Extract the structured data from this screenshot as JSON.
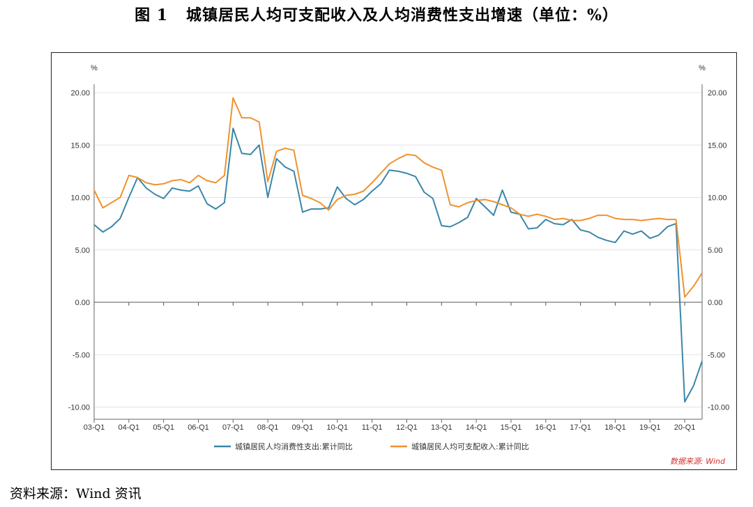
{
  "figure": {
    "number": "图 1",
    "title": "城镇居民人均可支配收入及人均消费性支出增速（单位：%）",
    "source_note": "资料来源：Wind 资讯",
    "watermark": "数据来源: Wind"
  },
  "chart_data": {
    "type": "line",
    "title": "城镇居民人均可支配收入及人均消费性支出增速（单位：%）",
    "ylabel_left": "%",
    "ylabel_right": "%",
    "ylim": [
      -11,
      21
    ],
    "yticks": [
      "20.00",
      "15.00",
      "10.00",
      "5.00",
      "0.00",
      "-5.00",
      "-10.00"
    ],
    "ytick_values": [
      20,
      15,
      10,
      5,
      0,
      -5,
      -10
    ],
    "right_yticks": [
      "20.00",
      "15.00",
      "10.00",
      "5.00",
      "0.00",
      "-5.00",
      "-10.00"
    ],
    "xticks": [
      "03-Q1",
      "04-Q1",
      "05-Q1",
      "06-Q1",
      "07-Q1",
      "08-Q1",
      "09-Q1",
      "10-Q1",
      "11-Q1",
      "12-Q1",
      "13-Q1",
      "14-Q1",
      "15-Q1",
      "16-Q1",
      "17-Q1",
      "18-Q1",
      "19-Q1",
      "20-Q1"
    ],
    "grid": true,
    "legend_position": "bottom",
    "x": [
      "03-Q1",
      "03-Q2",
      "03-Q3",
      "03-Q4",
      "04-Q1",
      "04-Q2",
      "04-Q3",
      "04-Q4",
      "05-Q1",
      "05-Q2",
      "05-Q3",
      "05-Q4",
      "06-Q1",
      "06-Q2",
      "06-Q3",
      "06-Q4",
      "07-Q1",
      "07-Q2",
      "07-Q3",
      "07-Q4",
      "08-Q1",
      "08-Q2",
      "08-Q3",
      "08-Q4",
      "09-Q1",
      "09-Q2",
      "09-Q3",
      "09-Q4",
      "10-Q1",
      "10-Q2",
      "10-Q3",
      "10-Q4",
      "11-Q1",
      "11-Q2",
      "11-Q3",
      "11-Q4",
      "12-Q1",
      "12-Q2",
      "12-Q3",
      "12-Q4",
      "13-Q1",
      "13-Q2",
      "13-Q3",
      "13-Q4",
      "14-Q1",
      "14-Q2",
      "14-Q3",
      "14-Q4",
      "15-Q1",
      "15-Q2",
      "15-Q3",
      "15-Q4",
      "16-Q1",
      "16-Q2",
      "16-Q3",
      "16-Q4",
      "17-Q1",
      "17-Q2",
      "17-Q3",
      "17-Q4",
      "18-Q1",
      "18-Q2",
      "18-Q3",
      "18-Q4",
      "19-Q1",
      "19-Q2",
      "19-Q3",
      "19-Q4",
      "20-Q1",
      "20-Q2",
      "20-Q3"
    ],
    "series": [
      {
        "name": "城镇居民人均消费性支出:累计同比",
        "color": "#3a86a8",
        "values": [
          7.4,
          6.7,
          7.2,
          8.0,
          10.0,
          11.9,
          10.9,
          10.3,
          9.9,
          10.9,
          10.7,
          10.6,
          11.1,
          9.4,
          8.9,
          9.5,
          16.6,
          14.2,
          14.1,
          15.0,
          10.0,
          13.7,
          12.9,
          12.5,
          8.6,
          8.9,
          8.9,
          9.0,
          11.0,
          9.9,
          9.3,
          9.8,
          10.6,
          11.3,
          12.6,
          12.5,
          12.3,
          12.0,
          10.5,
          9.9,
          7.3,
          7.2,
          7.6,
          8.1,
          9.9,
          9.1,
          8.3,
          10.7,
          8.6,
          8.4,
          7.0,
          7.1,
          7.9,
          7.5,
          7.4,
          7.9,
          6.9,
          6.7,
          6.2,
          5.9,
          5.7,
          6.8,
          6.5,
          6.8,
          6.1,
          6.4,
          7.2,
          7.5,
          -9.5,
          -8.0,
          -5.6
        ]
      },
      {
        "name": "城镇居民人均可支配收入:累计同比",
        "color": "#f0922e",
        "values": [
          10.7,
          9.0,
          9.5,
          10.0,
          12.1,
          11.9,
          11.4,
          11.2,
          11.3,
          11.6,
          11.7,
          11.4,
          12.1,
          11.6,
          11.4,
          12.1,
          19.5,
          17.6,
          17.6,
          17.2,
          11.5,
          14.4,
          14.7,
          14.5,
          10.2,
          9.9,
          9.5,
          8.8,
          9.8,
          10.2,
          10.3,
          10.6,
          11.4,
          12.3,
          13.2,
          13.7,
          14.1,
          14.0,
          13.3,
          12.9,
          12.6,
          9.3,
          9.1,
          9.5,
          9.7,
          9.8,
          9.6,
          9.3,
          9.0,
          8.4,
          8.2,
          8.4,
          8.2,
          7.9,
          8.0,
          7.8,
          7.8,
          8.0,
          8.3,
          8.3,
          8.0,
          7.9,
          7.9,
          7.8,
          7.9,
          8.0,
          7.9,
          7.9,
          0.5,
          1.5,
          2.8
        ]
      }
    ]
  }
}
